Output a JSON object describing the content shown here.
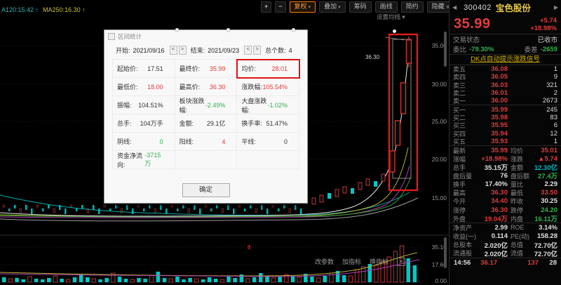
{
  "colors": {
    "up": "#e03a3a",
    "down": "#2eb34a",
    "neutral_dark": "#222222",
    "neutral_light": "#e0e0e0",
    "cyan": "#00b7c3",
    "accent_orange": "#ff8a1e",
    "link_yellow": "#d8b400",
    "name_gold": "#e8c84a"
  },
  "topbar": {
    "ma_info": [
      {
        "text": "A120:15.42 ↑",
        "color": "#2fb5b5"
      },
      {
        "text": "MA250:16.30 ↑",
        "color": "#c9c23a"
      }
    ],
    "buttons": [
      {
        "label": "+",
        "small": true
      },
      {
        "label": "−",
        "small": true
      },
      {
        "label": "复权",
        "caret": "▾",
        "accent": true
      },
      {
        "label": "叠加",
        "caret": "▾"
      },
      {
        "label": "筹码"
      },
      {
        "label": "画线"
      },
      {
        "label": "简约"
      },
      {
        "label": "隐藏 »"
      }
    ],
    "ma_settings": "设置均线 ▾"
  },
  "chart": {
    "price_axis": [
      "35.00",
      "30.00",
      "25.00",
      "20.00",
      "15.00"
    ],
    "volume_axis": [
      "35.10",
      "17.60",
      "0.00"
    ],
    "high_annotation": "36.30",
    "event_marker": "8",
    "indicator_toolbar": [
      "改参数",
      "加指标",
      "换指标"
    ],
    "close_glyph": "×",
    "volume_bars": [
      [
        7,
        "c"
      ],
      [
        5,
        "r"
      ],
      [
        6,
        "c"
      ],
      [
        4,
        "c"
      ],
      [
        8,
        "r"
      ],
      [
        5,
        "c"
      ],
      [
        4,
        "c"
      ],
      [
        6,
        "c"
      ],
      [
        9,
        "r"
      ],
      [
        5,
        "c"
      ],
      [
        4,
        "r"
      ],
      [
        7,
        "c"
      ],
      [
        11,
        "c"
      ],
      [
        7,
        "c"
      ],
      [
        5,
        "r"
      ],
      [
        4,
        "c"
      ],
      [
        6,
        "c"
      ],
      [
        13,
        "r"
      ],
      [
        8,
        "c"
      ],
      [
        5,
        "c"
      ],
      [
        4,
        "r"
      ],
      [
        6,
        "c"
      ],
      [
        5,
        "c"
      ],
      [
        10,
        "r"
      ],
      [
        15,
        "c"
      ],
      [
        6,
        "c"
      ],
      [
        5,
        "r"
      ],
      [
        8,
        "c"
      ],
      [
        4,
        "c"
      ],
      [
        6,
        "c"
      ],
      [
        5,
        "r"
      ],
      [
        4,
        "c"
      ],
      [
        7,
        "c"
      ],
      [
        5,
        "c"
      ],
      [
        4,
        "r"
      ],
      [
        8,
        "c"
      ],
      [
        6,
        "c"
      ],
      [
        11,
        "c"
      ],
      [
        5,
        "r"
      ],
      [
        7,
        "c"
      ],
      [
        13,
        "c"
      ],
      [
        9,
        "c"
      ],
      [
        6,
        "r"
      ],
      [
        8,
        "c"
      ],
      [
        11,
        "r"
      ],
      [
        9,
        "c"
      ],
      [
        7,
        "r"
      ],
      [
        12,
        "c"
      ],
      [
        8,
        "c"
      ],
      [
        6,
        "r"
      ],
      [
        9,
        "c"
      ],
      [
        13,
        "r"
      ],
      [
        16,
        "c"
      ],
      [
        10,
        "c"
      ],
      [
        9,
        "r"
      ],
      [
        18,
        "r"
      ],
      [
        22,
        "r"
      ],
      [
        26,
        "c"
      ],
      [
        24,
        "r"
      ],
      [
        30,
        "r"
      ],
      [
        36,
        "r"
      ],
      [
        44,
        "r"
      ],
      [
        52,
        "r"
      ],
      [
        34,
        "c"
      ],
      [
        24,
        "c"
      ]
    ]
  },
  "dialog": {
    "title": "区间统计",
    "range": {
      "fields": [
        {
          "label": "开始:",
          "value": "2021/09/16"
        },
        {
          "label": "结束:",
          "value": "2021/09/23"
        },
        {
          "label": "总个数:",
          "value": "4"
        }
      ],
      "prev": "<",
      "next": ">"
    },
    "rows": [
      [
        {
          "l": "起始价:",
          "v": "17.51",
          "c": "neutral"
        },
        {
          "l": "最终价:",
          "v": "35.99",
          "c": "up"
        },
        {
          "l": "均价:",
          "v": "28.01",
          "c": "up",
          "hl": true
        }
      ],
      [
        {
          "l": "最低价:",
          "v": "18.00",
          "c": "up"
        },
        {
          "l": "最高价:",
          "v": "36.30",
          "c": "up"
        },
        {
          "l": "涨跌幅:",
          "v": "105.54%",
          "c": "up"
        }
      ],
      [
        {
          "l": "振幅:",
          "v": "104.51%",
          "c": "neutral"
        },
        {
          "l": "板块涨跌幅:",
          "v": "-2.49%",
          "c": "down"
        },
        {
          "l": "大盘涨跌幅:",
          "v": "-1.02%",
          "c": "down"
        }
      ],
      [
        {
          "l": "总手:",
          "v": "104万手",
          "c": "neutral"
        },
        {
          "l": "金额:",
          "v": "29.1亿",
          "c": "neutral"
        },
        {
          "l": "换手率:",
          "v": "51.47%",
          "c": "neutral"
        }
      ],
      [
        {
          "l": "阴线:",
          "v": "0",
          "c": "down"
        },
        {
          "l": "阳线:",
          "v": "4",
          "c": "up"
        },
        {
          "l": "平线:",
          "v": "0",
          "c": "neutral"
        }
      ],
      [
        {
          "l": "资金净流向:",
          "v": "-3715万",
          "c": "down"
        },
        {
          "l": "",
          "v": "",
          "c": "neutral"
        },
        {
          "l": "",
          "v": "",
          "c": "neutral"
        }
      ]
    ],
    "confirm": "确定"
  },
  "quote": {
    "prev_arrow": "◀",
    "next_arrow": "▶",
    "code": "300402",
    "name": "宝色股份",
    "last": "35.99",
    "change": "+5.74",
    "change_pct": "+18.98%",
    "status_label": "交易状态",
    "status": "已收市",
    "weibi_label": "委比",
    "weibi": "-79.30%",
    "weicha_label": "委差",
    "weicha": "-2659",
    "dk_link": "DK点自动提示涨跌信号",
    "asks": [
      {
        "l": "卖五",
        "p": "36.08",
        "q": "1"
      },
      {
        "l": "卖四",
        "p": "36.05",
        "q": "9"
      },
      {
        "l": "卖三",
        "p": "36.03",
        "q": "321"
      },
      {
        "l": "卖二",
        "p": "36.01",
        "q": "2"
      },
      {
        "l": "卖一",
        "p": "36.00",
        "q": "2673"
      }
    ],
    "bids": [
      {
        "l": "买一",
        "p": "35.99",
        "q": "245"
      },
      {
        "l": "买二",
        "p": "35.98",
        "q": "83"
      },
      {
        "l": "买三",
        "p": "35.95",
        "q": "6"
      },
      {
        "l": "买四",
        "p": "35.94",
        "q": "12"
      },
      {
        "l": "买五",
        "p": "35.93",
        "q": "1"
      }
    ],
    "details": [
      [
        {
          "l": "最新",
          "v": "35.99",
          "c": "up"
        },
        {
          "l": "均价",
          "v": "35.01",
          "c": "up"
        }
      ],
      [
        {
          "l": "涨幅",
          "v": "+18.98%",
          "c": "up"
        },
        {
          "l": "涨跌",
          "v": "▲5.74",
          "c": "up"
        }
      ],
      [
        {
          "l": "总手",
          "v": "35.15万",
          "c": "neutral"
        },
        {
          "l": "金额",
          "v": "12.30亿",
          "c": "cyan"
        }
      ],
      [
        {
          "l": "盘后量",
          "v": "76",
          "c": "neutral"
        },
        {
          "l": "盘后额",
          "v": "27.4万",
          "c": "down"
        }
      ],
      [
        {
          "l": "换手",
          "v": "17.40%",
          "c": "neutral"
        },
        {
          "l": "量比",
          "v": "2.29",
          "c": "neutral"
        }
      ],
      [
        {
          "l": "最高",
          "v": "36.30",
          "c": "up"
        },
        {
          "l": "最低",
          "v": "33.50",
          "c": "up"
        }
      ],
      [
        {
          "l": "今开",
          "v": "34.40",
          "c": "up"
        },
        {
          "l": "昨收",
          "v": "30.25",
          "c": "neutral"
        }
      ],
      [
        {
          "l": "涨停",
          "v": "36.30",
          "c": "up"
        },
        {
          "l": "跌停",
          "v": "24.20",
          "c": "down"
        }
      ],
      [
        {
          "l": "外盘",
          "v": "19.04万",
          "c": "up"
        },
        {
          "l": "内盘",
          "v": "16.11万",
          "c": "down"
        }
      ]
    ],
    "fundamentals": [
      [
        {
          "l": "净资产",
          "v": "2.99",
          "c": "neutral"
        },
        {
          "l": "ROE",
          "v": "3.14%",
          "c": "neutral"
        }
      ],
      [
        {
          "l": "收益(一)",
          "v": "0.114",
          "c": "neutral"
        },
        {
          "l": "PE(动)",
          "v": "158.28",
          "c": "neutral"
        }
      ],
      [
        {
          "l": "总股本",
          "v": "2.020亿",
          "c": "neutral"
        },
        {
          "l": "总值",
          "v": "72.70亿",
          "c": "neutral"
        }
      ],
      [
        {
          "l": "流通股",
          "v": "2.020亿",
          "c": "neutral"
        },
        {
          "l": "流值",
          "v": "72.70亿",
          "c": "neutral"
        }
      ]
    ],
    "ticks": [
      {
        "t": "14:56",
        "p": "36.17",
        "v": "137",
        "n": "28"
      }
    ]
  }
}
